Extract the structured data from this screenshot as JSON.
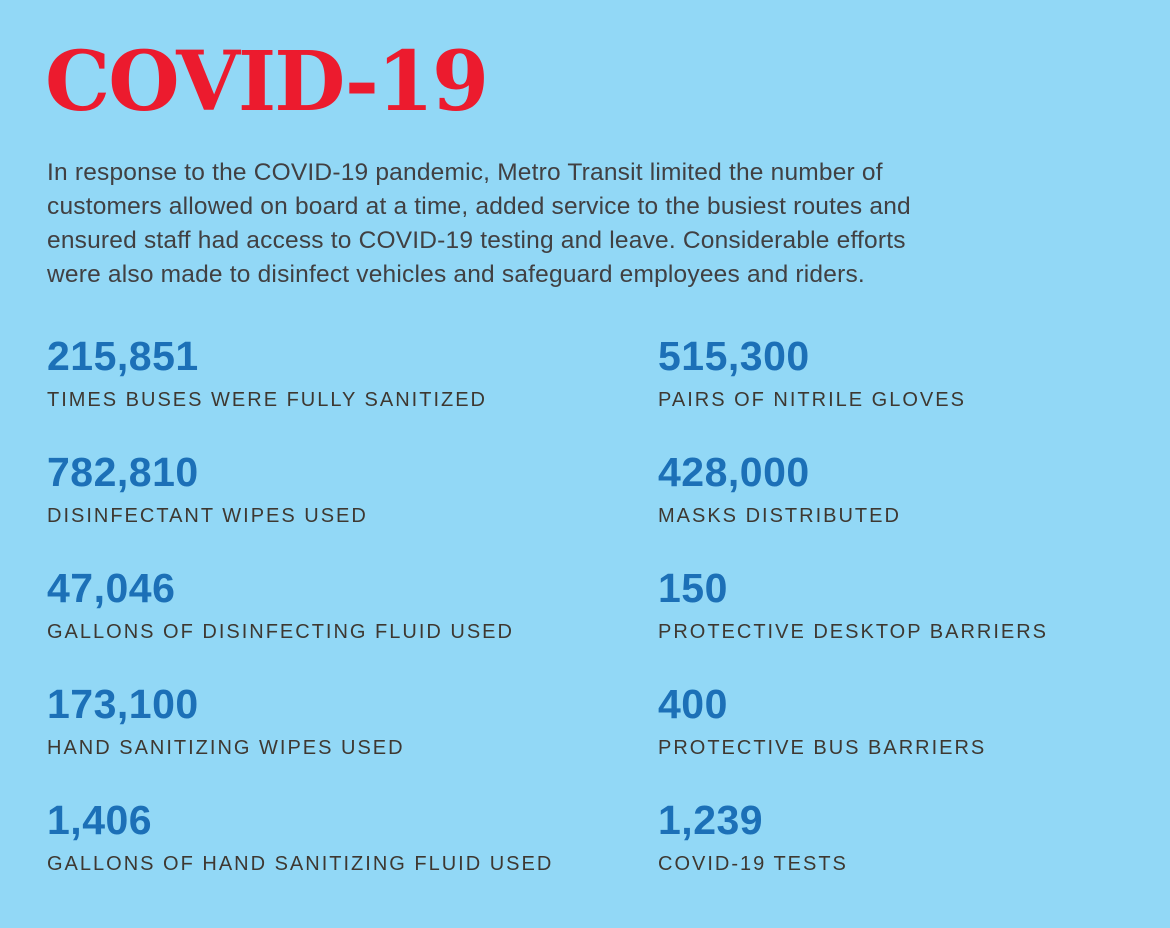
{
  "page": {
    "background_color": "#92D8F6",
    "title": "COVID-19",
    "title_color": "#EC1B2E",
    "number_color": "#1C70B7",
    "label_color": "#3E3831"
  },
  "intro": {
    "full_text": "In response to the COVID-19 pandemic, Metro Transit limited the number of customers allowed on board at a time, added service to the busiest routes and ensured staff had access to COVID-19 testing and leave. Considerable efforts were also made to disinfect vehicles and safeguard employees and riders.",
    "lines": [
      "In response to the COVID-19 pandemic, Metro Transit limited the number of",
      "customers allowed on board at a time, added service to the busiest routes and",
      "ensured staff had access to COVID-19 testing and leave. Considerable efforts",
      "were also made to disinfect vehicles and safeguard employees and riders."
    ]
  },
  "stats": {
    "left": [
      {
        "value": "215,851",
        "label": "TIMES BUSES WERE FULLY SANITIZED"
      },
      {
        "value": "782,810",
        "label": "DISINFECTANT WIPES USED"
      },
      {
        "value": "47,046",
        "label": "GALLONS OF DISINFECTING FLUID USED"
      },
      {
        "value": "173,100",
        "label": "HAND SANITIZING WIPES USED"
      },
      {
        "value": "1,406",
        "label": "GALLONS OF HAND SANITIZING FLUID USED"
      }
    ],
    "right": [
      {
        "value": "515,300",
        "label": "PAIRS OF NITRILE GLOVES"
      },
      {
        "value": "428,000",
        "label": "MASKS DISTRIBUTED"
      },
      {
        "value": "150",
        "label": "PROTECTIVE DESKTOP BARRIERS"
      },
      {
        "value": "400",
        "label": "PROTECTIVE BUS BARRIERS"
      },
      {
        "value": "1,239",
        "label": "COVID-19 TESTS"
      }
    ]
  }
}
